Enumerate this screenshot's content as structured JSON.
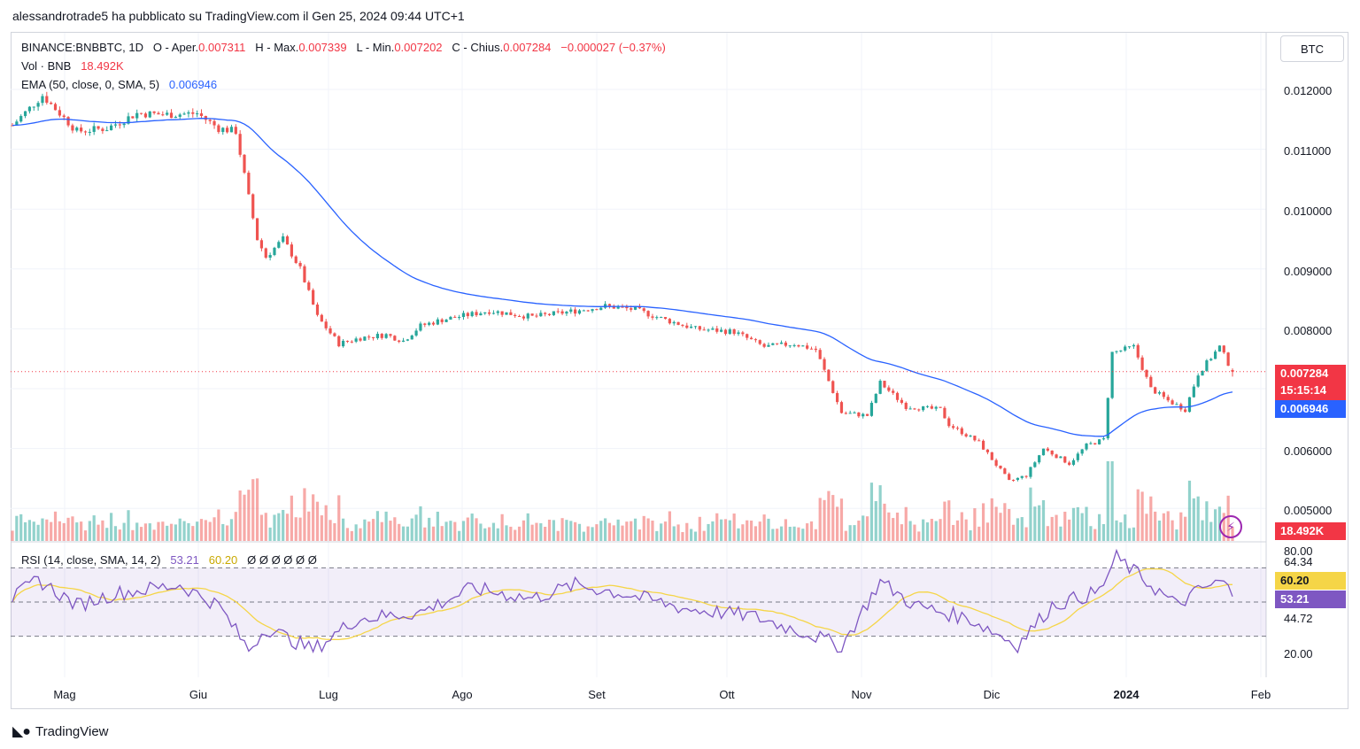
{
  "header": {
    "title": "alessandrotrade5 ha pubblicato su TradingView.com il Gen 25, 2024 09:44 UTC+1"
  },
  "legend": {
    "symbol": "BINANCE:BNBBTC, 1D",
    "open_label": "O - Aper.",
    "open_value": "0.007311",
    "high_label": "H - Max.",
    "high_value": "0.007339",
    "low_label": "L - Min.",
    "low_value": "0.007202",
    "close_label": "C - Chius.",
    "close_value": "0.007284",
    "change": "−0.000027 (−0.37%)",
    "vol_label": "Vol · BNB",
    "vol_value": "18.492K",
    "ema_label": "EMA (50, close, 0, SMA, 5)",
    "ema_value": "0.006946",
    "rsi_label": "RSI (14, close, SMA, 14, 2)",
    "rsi_value": "53.21",
    "rsi_ma_value": "60.20",
    "rsi_extra": "Ø Ø Ø Ø Ø Ø"
  },
  "currency_button": "BTC",
  "price_labels": {
    "last_price": "0.007284",
    "countdown": "15:15:14",
    "ema": "0.006946",
    "volume": "18.492K",
    "rsi_ma": "60.20",
    "rsi": "53.21"
  },
  "colors": {
    "up": "#26a69a",
    "down": "#ef5350",
    "ema": "#2962ff",
    "rsi": "#7e57c2",
    "rsi_ma": "#f5d547"
  },
  "footer": {
    "brand": "TradingView",
    "logo": "tradingview-logo-icon"
  },
  "chart_data": [
    {
      "type": "candlestick",
      "title": "BINANCE:BNBBTC, 1D",
      "ylim": [
        0.0047,
        0.0123
      ],
      "y_ticks": [
        "0.012000",
        "0.011000",
        "0.010000",
        "0.009000",
        "0.008000",
        "0.006000",
        "0.005000"
      ],
      "x_ticks": [
        "Mag",
        "Giu",
        "Lug",
        "Ago",
        "Set",
        "Ott",
        "Nov",
        "Dic",
        "2024",
        "Feb"
      ],
      "x_range": [
        "2023-04-16",
        "2024-01-25"
      ],
      "close_anchors": [
        [
          "2023-04-16",
          0.0114
        ],
        [
          "2023-04-23",
          0.0119
        ],
        [
          "2023-05-01",
          0.0113
        ],
        [
          "2023-05-08",
          0.01135
        ],
        [
          "2023-05-15",
          0.0116
        ],
        [
          "2023-05-22",
          0.01158
        ],
        [
          "2023-05-29",
          0.0116
        ],
        [
          "2023-06-03",
          0.01135
        ],
        [
          "2023-06-07",
          0.0113
        ],
        [
          "2023-06-10",
          0.0102
        ],
        [
          "2023-06-12",
          0.0095
        ],
        [
          "2023-06-14",
          0.0092
        ],
        [
          "2023-06-18",
          0.0095
        ],
        [
          "2023-06-22",
          0.009
        ],
        [
          "2023-06-26",
          0.0082
        ],
        [
          "2023-07-01",
          0.00775
        ],
        [
          "2023-07-06",
          0.00785
        ],
        [
          "2023-07-12",
          0.0079
        ],
        [
          "2023-07-16",
          0.0078
        ],
        [
          "2023-07-20",
          0.00805
        ],
        [
          "2023-07-25",
          0.00815
        ],
        [
          "2023-08-05",
          0.0083
        ],
        [
          "2023-08-15",
          0.0082
        ],
        [
          "2023-08-25",
          0.0083
        ],
        [
          "2023-09-01",
          0.00838
        ],
        [
          "2023-09-08",
          0.00832
        ],
        [
          "2023-09-15",
          0.00815
        ],
        [
          "2023-09-22",
          0.008
        ],
        [
          "2023-10-01",
          0.00795
        ],
        [
          "2023-10-08",
          0.0077
        ],
        [
          "2023-10-15",
          0.00775
        ],
        [
          "2023-10-20",
          0.00765
        ],
        [
          "2023-10-26",
          0.0066
        ],
        [
          "2023-11-01",
          0.00655
        ],
        [
          "2023-11-04",
          0.0071
        ],
        [
          "2023-11-10",
          0.0067
        ],
        [
          "2023-11-18",
          0.00665
        ],
        [
          "2023-11-20",
          0.0064
        ],
        [
          "2023-11-27",
          0.0061
        ],
        [
          "2023-12-04",
          0.00545
        ],
        [
          "2023-12-08",
          0.00555
        ],
        [
          "2023-12-12",
          0.006
        ],
        [
          "2023-12-18",
          0.00575
        ],
        [
          "2023-12-22",
          0.00605
        ],
        [
          "2023-12-26",
          0.00615
        ],
        [
          "2023-12-28",
          0.0076
        ],
        [
          "2024-01-02",
          0.0077
        ],
        [
          "2024-01-06",
          0.007
        ],
        [
          "2024-01-10",
          0.0068
        ],
        [
          "2024-01-14",
          0.00665
        ],
        [
          "2024-01-17",
          0.00725
        ],
        [
          "2024-01-22",
          0.0077
        ],
        [
          "2024-01-25",
          0.007284
        ]
      ],
      "last": {
        "open": 0.007311,
        "high": 0.007339,
        "low": 0.007202,
        "close": 0.007284
      },
      "ema_50": 0.006946,
      "volume_last": "18.492K"
    },
    {
      "type": "line",
      "title": "RSI (14, close, SMA, 14, 2)",
      "ylim": [
        0,
        80
      ],
      "y_ticks": [
        "80.00",
        "64.34",
        "44.72",
        "20.00"
      ],
      "bands": {
        "upper": 70,
        "middle": 50,
        "lower": 30
      },
      "rsi_anchors": [
        [
          "2023-04-16",
          52
        ],
        [
          "2023-04-22",
          63
        ],
        [
          "2023-05-01",
          48
        ],
        [
          "2023-05-10",
          55
        ],
        [
          "2023-05-25",
          60
        ],
        [
          "2023-06-03",
          48
        ],
        [
          "2023-06-10",
          22
        ],
        [
          "2023-06-14",
          35
        ],
        [
          "2023-06-25",
          22
        ],
        [
          "2023-07-05",
          40
        ],
        [
          "2023-07-20",
          44
        ],
        [
          "2023-08-01",
          58
        ],
        [
          "2023-08-15",
          52
        ],
        [
          "2023-08-25",
          60
        ],
        [
          "2023-09-05",
          55
        ],
        [
          "2023-09-20",
          46
        ],
        [
          "2023-10-05",
          42
        ],
        [
          "2023-10-20",
          30
        ],
        [
          "2023-10-26",
          24
        ],
        [
          "2023-11-04",
          62
        ],
        [
          "2023-11-12",
          48
        ],
        [
          "2023-11-25",
          40
        ],
        [
          "2023-12-06",
          25
        ],
        [
          "2023-12-14",
          48
        ],
        [
          "2023-12-25",
          56
        ],
        [
          "2023-12-29",
          76
        ],
        [
          "2024-01-06",
          60
        ],
        [
          "2024-01-12",
          48
        ],
        [
          "2024-01-18",
          58
        ],
        [
          "2024-01-23",
          62
        ],
        [
          "2024-01-25",
          53.21
        ]
      ],
      "rsi_ma_last": 60.2,
      "rsi_last": 53.21
    }
  ]
}
